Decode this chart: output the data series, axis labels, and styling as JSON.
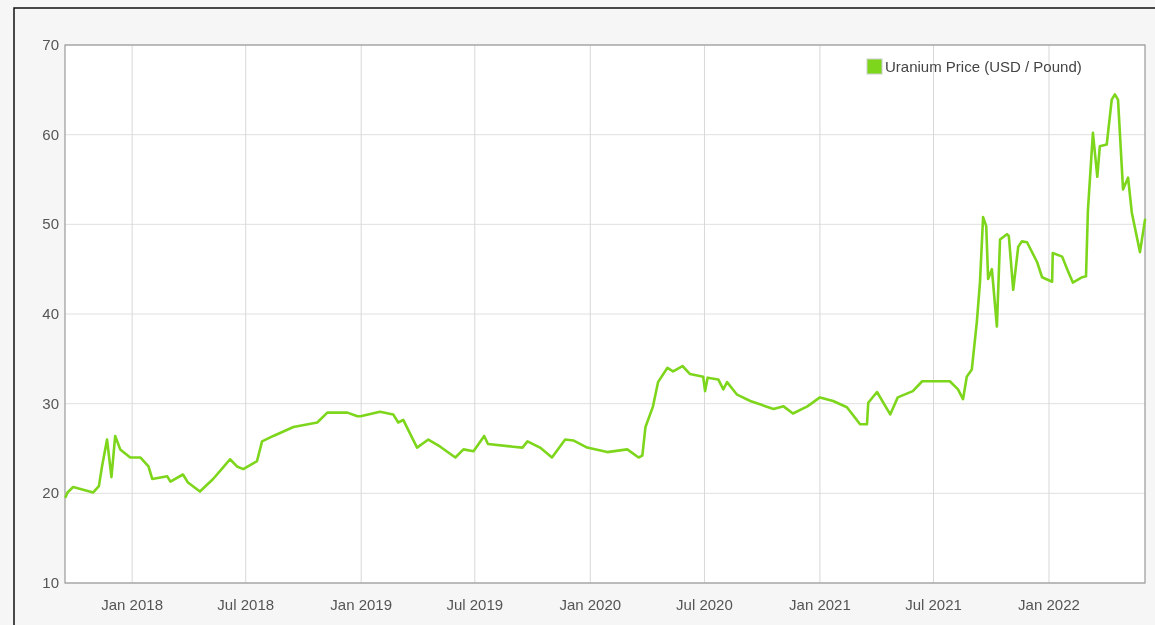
{
  "chart_data": {
    "type": "line",
    "xlim": [
      "2017-09-16",
      "2022-06-03"
    ],
    "ylim": [
      10,
      70
    ],
    "yticks": [
      10,
      20,
      30,
      40,
      50,
      60,
      70
    ],
    "xticks": [
      {
        "value": "2018-01",
        "label": "Jan 2018"
      },
      {
        "value": "2018-07",
        "label": "Jul 2018"
      },
      {
        "value": "2019-01",
        "label": "Jan 2019"
      },
      {
        "value": "2019-07",
        "label": "Jul 2019"
      },
      {
        "value": "2020-01",
        "label": "Jan 2020"
      },
      {
        "value": "2020-07",
        "label": "Jul 2020"
      },
      {
        "value": "2021-01",
        "label": "Jan 2021"
      },
      {
        "value": "2021-07",
        "label": "Jul 2021"
      },
      {
        "value": "2022-01",
        "label": "Jan 2022"
      }
    ],
    "grid": true,
    "legend": "top right",
    "marker": "none",
    "line_style": "solid",
    "series": [
      {
        "name": "Uranium Price (USD / Pound)",
        "color": "#7dd61c",
        "x": [
          "2017-09-17",
          "2017-09-20",
          "2017-09-29",
          "2017-10-31",
          "2017-11-09",
          "2017-11-14",
          "2017-11-22",
          "2017-11-29",
          "2017-12-05",
          "2017-12-13",
          "2017-12-29",
          "2018-01-14",
          "2018-01-27",
          "2018-02-02",
          "2018-02-26",
          "2018-03-03",
          "2018-03-23",
          "2018-03-31",
          "2018-04-19",
          "2018-05-10",
          "2018-05-26",
          "2018-06-06",
          "2018-06-17",
          "2018-06-27",
          "2018-07-19",
          "2018-07-27",
          "2018-08-14",
          "2018-09-15",
          "2018-10-23",
          "2018-11-08",
          "2018-12-10",
          "2018-12-26",
          "2018-12-31",
          "2019-01-31",
          "2019-02-21",
          "2019-03-01",
          "2019-03-09",
          "2019-03-31",
          "2019-04-18",
          "2019-05-07",
          "2019-05-31",
          "2019-06-13",
          "2019-06-29",
          "2019-07-16",
          "2019-07-22",
          "2019-08-31",
          "2019-09-15",
          "2019-09-23",
          "2019-10-13",
          "2019-11-01",
          "2019-11-22",
          "2019-12-05",
          "2019-12-27",
          "2020-01-28",
          "2020-02-29",
          "2020-03-18",
          "2020-03-24",
          "2020-03-29",
          "2020-04-10",
          "2020-04-18",
          "2020-05-03",
          "2020-05-12",
          "2020-05-27",
          "2020-06-08",
          "2020-06-29",
          "2020-07-02",
          "2020-07-06",
          "2020-07-23",
          "2020-07-31",
          "2020-08-06",
          "2020-08-22",
          "2020-09-12",
          "2020-10-19",
          "2020-11-04",
          "2020-11-19",
          "2020-12-12",
          "2021-01-01",
          "2021-01-22",
          "2021-02-13",
          "2021-03-06",
          "2021-03-17",
          "2021-03-19",
          "2021-04-02",
          "2021-04-23",
          "2021-05-05",
          "2021-05-29",
          "2021-06-13",
          "2021-06-30",
          "2021-07-27",
          "2021-08-09",
          "2021-08-17",
          "2021-08-23",
          "2021-08-31",
          "2021-09-08",
          "2021-09-13",
          "2021-09-18",
          "2021-09-23",
          "2021-09-26",
          "2021-10-02",
          "2021-10-10",
          "2021-10-15",
          "2021-10-26",
          "2021-10-29",
          "2021-11-05",
          "2021-11-13",
          "2021-11-19",
          "2021-11-27",
          "2021-12-13",
          "2021-12-21",
          "2022-01-06",
          "2022-01-07",
          "2022-01-22",
          "2022-01-30",
          "2022-02-08",
          "2022-02-23",
          "2022-03-01",
          "2022-03-04",
          "2022-03-12",
          "2022-03-19",
          "2022-03-23",
          "2022-04-03",
          "2022-04-11",
          "2022-04-16",
          "2022-04-21",
          "2022-04-29",
          "2022-05-07",
          "2022-05-13",
          "2022-05-26",
          "2022-06-03"
        ],
        "values": [
          19.6,
          20.1,
          20.7,
          20.1,
          20.8,
          23,
          26,
          21.8,
          26.4,
          24.9,
          24,
          24,
          23,
          21.6,
          21.9,
          21.3,
          22.1,
          21.2,
          20.2,
          21.6,
          22.9,
          23.8,
          23,
          22.7,
          23.6,
          25.8,
          26.4,
          27.4,
          27.9,
          29,
          29,
          28.6,
          28.6,
          29.1,
          28.8,
          27.9,
          28.2,
          25.1,
          26,
          25.2,
          24,
          24.9,
          24.7,
          26.4,
          25.5,
          25.2,
          25.1,
          25.8,
          25.1,
          24,
          26,
          25.9,
          25.1,
          24.6,
          24.9,
          24,
          24.2,
          27.4,
          29.7,
          32.4,
          34,
          33.6,
          34.2,
          33.3,
          33,
          31.4,
          32.9,
          32.7,
          31.6,
          32.4,
          31,
          30.3,
          29.4,
          29.7,
          28.9,
          29.7,
          30.7,
          30.3,
          29.6,
          27.7,
          27.7,
          30.1,
          31.3,
          28.8,
          30.7,
          31.4,
          32.5,
          32.5,
          32.5,
          31.6,
          30.5,
          33,
          33.8,
          39.1,
          43.5,
          50.8,
          49.8,
          43.9,
          45,
          38.6,
          48.3,
          48.9,
          48.7,
          42.7,
          47.5,
          48.1,
          48,
          45.8,
          44.1,
          43.6,
          46.8,
          46.4,
          45,
          43.5,
          44.1,
          44.2,
          51.5,
          60.2,
          55.3,
          58.7,
          58.9,
          63.9,
          64.5,
          63.9,
          53.9,
          55.2,
          51.3,
          46.9,
          50.5
        ]
      }
    ]
  }
}
